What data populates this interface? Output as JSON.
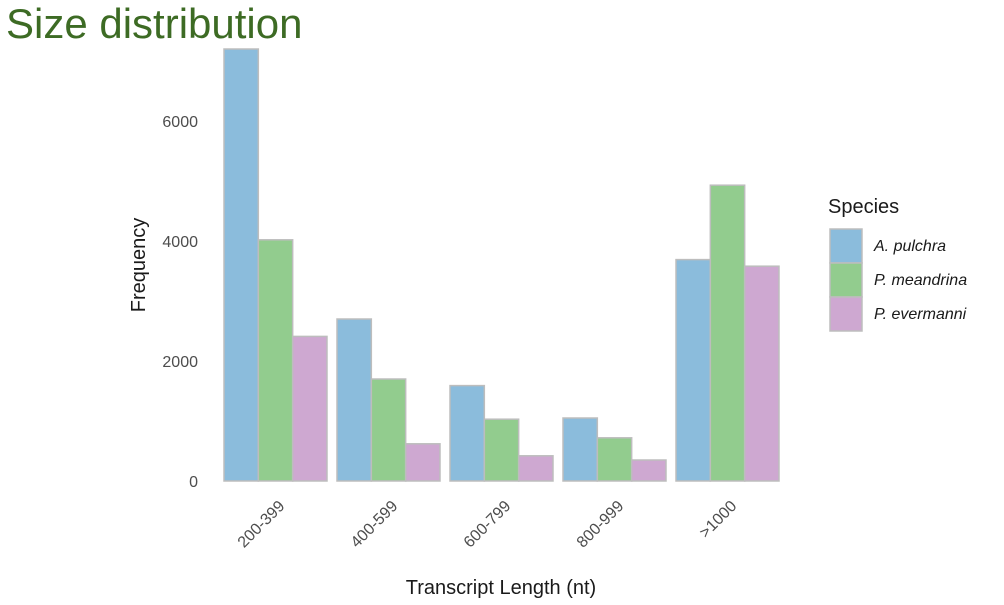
{
  "slide": {
    "title": "Size distribution"
  },
  "chart_data": {
    "type": "bar",
    "title": "",
    "xlabel": "Transcript Length (nt)",
    "ylabel": "Frequency",
    "categories": [
      "200-399",
      "400-599",
      "600-799",
      "800-999",
      ">1000"
    ],
    "yticks": [
      0,
      2000,
      4000,
      6000
    ],
    "ylim": [
      0,
      7200
    ],
    "grid": false,
    "legend": {
      "title": "Species",
      "placement": "right"
    },
    "series": [
      {
        "name": "A. pulchra",
        "color": "#8bbcdc",
        "values": [
          7200,
          2700,
          1590,
          1050,
          3690
        ]
      },
      {
        "name": "P. meandrina",
        "color": "#92cc8e",
        "values": [
          4020,
          1700,
          1030,
          720,
          4930
        ]
      },
      {
        "name": "P. evermanni",
        "color": "#cea8d1",
        "values": [
          2410,
          620,
          420,
          350,
          3580
        ]
      }
    ]
  }
}
